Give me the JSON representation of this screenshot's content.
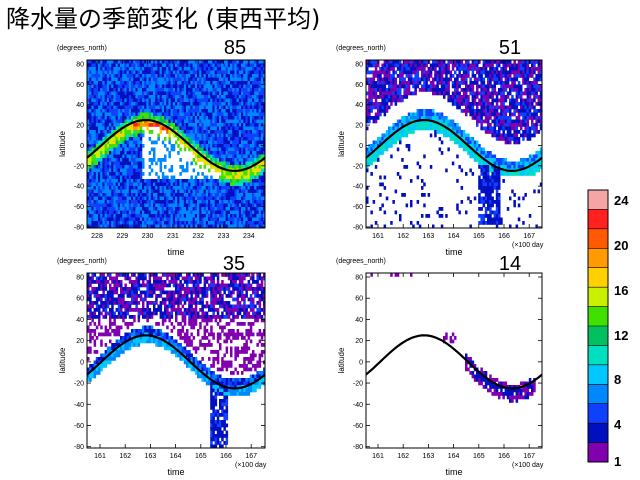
{
  "title": "降水量の季節変化 (東西平均)",
  "colorbar": {
    "labels": [
      "24",
      "20",
      "16",
      "12",
      "8",
      "4",
      "1"
    ],
    "colors": [
      "#f4a6a6",
      "#ff2020",
      "#ff5a00",
      "#ff9a00",
      "#ffd000",
      "#c8f000",
      "#40e000",
      "#00c060",
      "#00e0c0",
      "#00c8ff",
      "#0088ff",
      "#1040ff",
      "#0010c0",
      "#8000b0"
    ]
  },
  "panels": [
    {
      "number": "85",
      "y_units": "(degrees_north)",
      "ylabel": "latitude",
      "xlabel": "time",
      "x_units": "",
      "x_ticks": [
        "228",
        "229",
        "230",
        "231",
        "232",
        "233",
        "234"
      ],
      "y_ticks": [
        "80",
        "60",
        "40",
        "20",
        "0",
        "-20",
        "-40",
        "-60",
        "-80"
      ],
      "xlim": [
        227.5,
        234.2
      ],
      "density": "high"
    },
    {
      "number": "51",
      "y_units": "(degrees_north)",
      "ylabel": "latitude",
      "xlabel": "time",
      "x_units": "(×100 day",
      "x_ticks": [
        "161",
        "162",
        "163",
        "164",
        "165",
        "166",
        "167"
      ],
      "y_ticks": [
        "80",
        "60",
        "40",
        "20",
        "0",
        "-20",
        "-40",
        "-60",
        "-80"
      ],
      "xlim": [
        160.5,
        167.3
      ],
      "density": "medium"
    },
    {
      "number": "35",
      "y_units": "(degrees_north)",
      "ylabel": "latitude",
      "xlabel": "time",
      "x_units": "(×100 day",
      "x_ticks": [
        "161",
        "162",
        "163",
        "164",
        "165",
        "166",
        "167"
      ],
      "y_ticks": [
        "80",
        "60",
        "40",
        "20",
        "0",
        "-20",
        "-40",
        "-60",
        "-80"
      ],
      "xlim": [
        160.5,
        167.3
      ],
      "density": "medium-low"
    },
    {
      "number": "14",
      "y_units": "(degrees_north)",
      "ylabel": "latitude",
      "xlabel": "time",
      "x_units": "(×100 day",
      "x_ticks": [
        "161",
        "162",
        "163",
        "164",
        "165",
        "166",
        "167"
      ],
      "y_ticks": [
        "80",
        "60",
        "40",
        "20",
        "0",
        "-20",
        "-40",
        "-60",
        "-80"
      ],
      "xlim": [
        160.5,
        167.3
      ],
      "density": "low"
    }
  ]
}
